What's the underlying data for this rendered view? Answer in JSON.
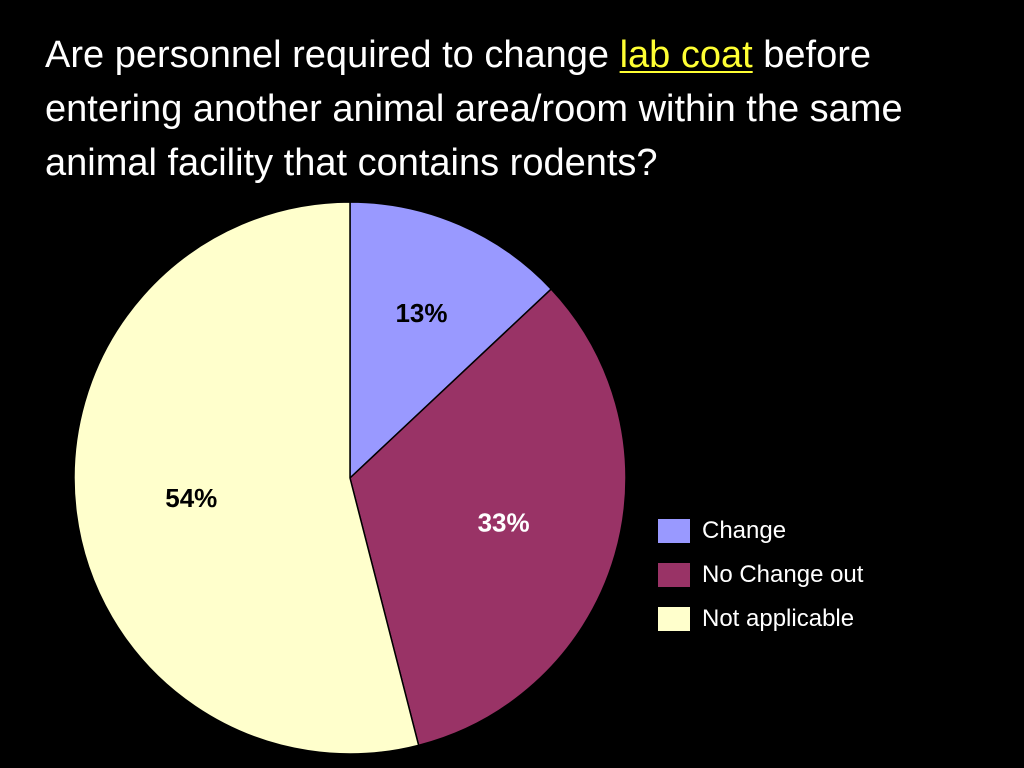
{
  "title": {
    "before": "Are personnel required to change ",
    "highlight": "lab coat",
    "after": " before entering another animal area/room within the same animal facility that contains rodents?",
    "highlight_color": "#ffff33"
  },
  "chart_data": {
    "type": "pie",
    "series": [
      {
        "name": "Change",
        "value": 13,
        "label": "13%",
        "color": "#9999ff",
        "label_color": "#000000"
      },
      {
        "name": "No Change out",
        "value": 33,
        "label": "33%",
        "color": "#993366",
        "label_color": "#ffffff"
      },
      {
        "name": "Not applicable",
        "value": 54,
        "label": "54%",
        "color": "#ffffcc",
        "label_color": "#000000"
      }
    ],
    "start": "12 o'clock",
    "direction": "clockwise",
    "legend_position": "right"
  },
  "colors": {
    "background": "#000000",
    "text": "#ffffff",
    "slice_border": "#000000"
  }
}
